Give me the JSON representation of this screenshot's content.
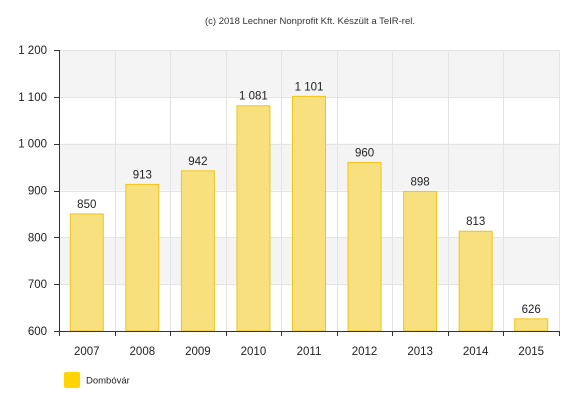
{
  "chart_data": {
    "type": "bar",
    "credit": "(c) 2018 Lechner Nonprofit Kft. Készült a TeIR-rel.",
    "categories": [
      "2007",
      "2008",
      "2009",
      "2010",
      "2011",
      "2012",
      "2013",
      "2014",
      "2015"
    ],
    "series": [
      {
        "name": "Dombóvár",
        "values": [
          850,
          913,
          942,
          1081,
          1101,
          960,
          898,
          813,
          626
        ],
        "labels": [
          "850",
          "913",
          "942",
          "1 081",
          "1 101",
          "960",
          "898",
          "813",
          "626"
        ]
      }
    ],
    "ylim": [
      600,
      1200
    ],
    "yticks": [
      600,
      700,
      800,
      900,
      1000,
      1100,
      1200
    ],
    "ytick_labels": [
      "600",
      "700",
      "800",
      "900",
      "1 000",
      "1 100",
      "1 200"
    ],
    "grid": true,
    "legend_position": "bottom-left",
    "colors": {
      "bar_fill": "#f9e07e",
      "bar_stroke": "#f0c419",
      "legend_swatch": "#ffd400",
      "band": "#f4f4f4",
      "grid": "#e3e3e3",
      "axis": "#333333"
    }
  }
}
